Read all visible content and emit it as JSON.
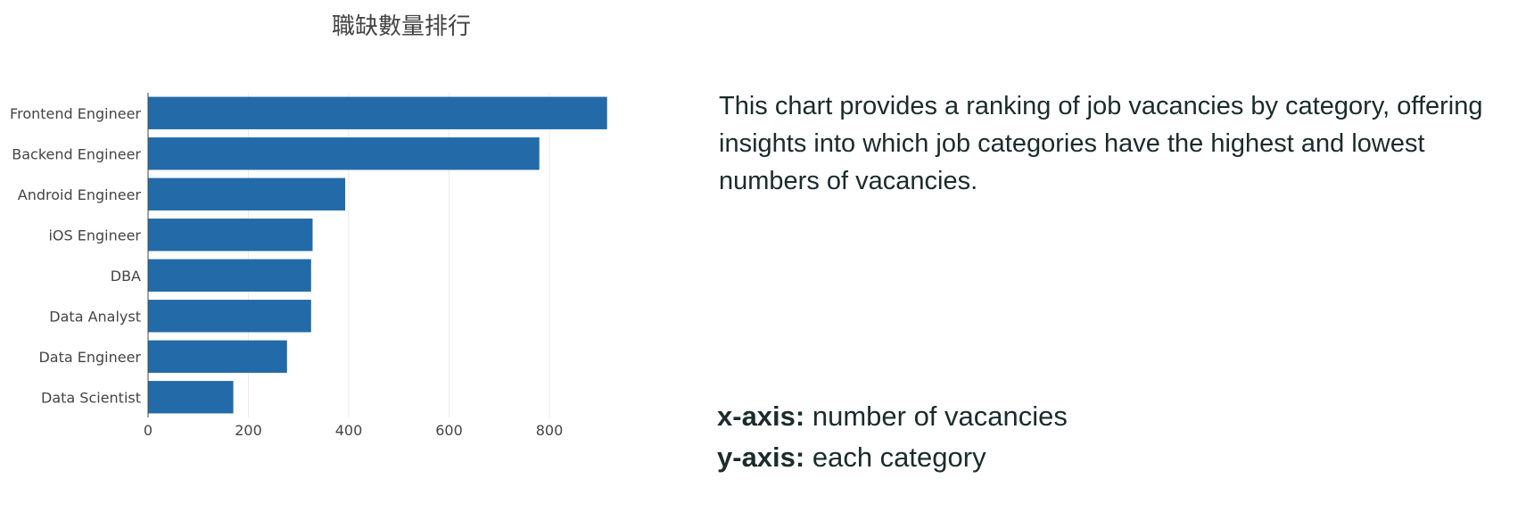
{
  "chart_data": {
    "type": "bar",
    "orientation": "horizontal",
    "title": "職缺數量排行",
    "xlabel": "",
    "ylabel": "",
    "categories": [
      "Frontend Engineer",
      "Backend Engineer",
      "Android Engineer",
      "iOS Engineer",
      "DBA",
      "Data Analyst",
      "Data Engineer",
      "Data Scientist"
    ],
    "values": [
      915,
      780,
      393,
      328,
      325,
      325,
      277,
      170
    ],
    "xlim": [
      0,
      920
    ],
    "xticks": [
      0,
      200,
      400,
      600,
      800
    ],
    "grid": true,
    "color": "#236ba8"
  },
  "description": "This chart provides a ranking of job vacancies by category, offering insights into which job categories have the highest and lowest numbers of vacancies.",
  "notes": {
    "x_key": "x-axis:",
    "x_value": " number of vacancies",
    "y_key": "y-axis:",
    "y_value": " each category"
  }
}
